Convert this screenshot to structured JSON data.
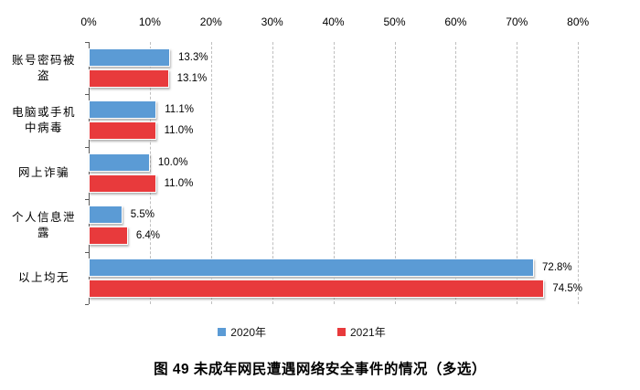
{
  "chart_data": {
    "type": "bar",
    "orientation": "horizontal",
    "caption": "图 49 未成年网民遭遇网络安全事件的情况（多选）",
    "categories": [
      "账号密码被盗",
      "电脑或手机中病毒",
      "网上诈骗",
      "个人信息泄露",
      "以上均无"
    ],
    "category_lines": [
      [
        "账号密码被",
        "盗"
      ],
      [
        "电脑或手机",
        "中病毒"
      ],
      [
        "网上诈骗"
      ],
      [
        "个人信息泄",
        "露"
      ],
      [
        "以上均无"
      ]
    ],
    "series": [
      {
        "name": "2020年",
        "color": "#5B9BD5",
        "values": [
          13.3,
          11.1,
          10.0,
          5.5,
          72.8
        ],
        "labels": [
          "13.3%",
          "11.1%",
          "10.0%",
          "5.5%",
          "72.8%"
        ]
      },
      {
        "name": "2021年",
        "color": "#E83A3C",
        "values": [
          13.1,
          11.0,
          11.0,
          6.4,
          74.5
        ],
        "labels": [
          "13.1%",
          "11.0%",
          "11.0%",
          "6.4%",
          "74.5%"
        ]
      }
    ],
    "x_axis": {
      "min": 0,
      "max": 80,
      "tick_step": 10,
      "tick_labels": [
        "0%",
        "10%",
        "20%",
        "30%",
        "40%",
        "50%",
        "60%",
        "70%",
        "80%"
      ],
      "gridlines": "dashed"
    },
    "legend": {
      "position": "bottom"
    },
    "colors": {
      "axis": "#595959",
      "gridline": "#BFBFBF",
      "text": "#000000",
      "background": "#FFFFFF"
    }
  }
}
